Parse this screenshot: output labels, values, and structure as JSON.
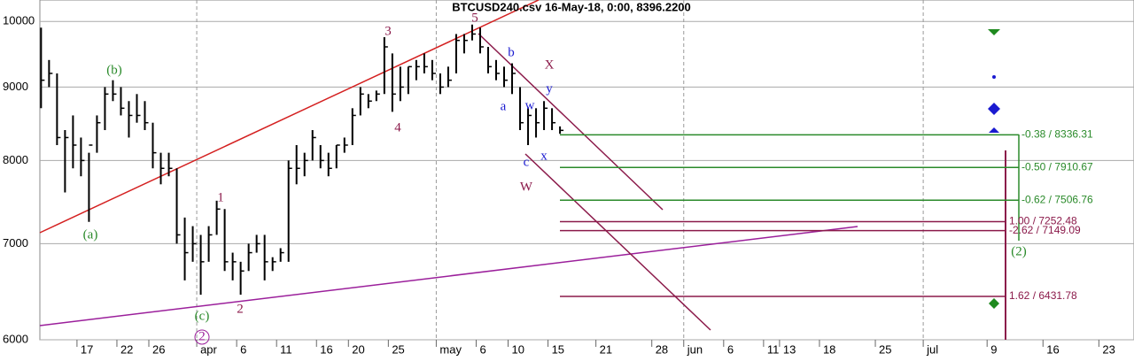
{
  "chart_data": {
    "type": "ohlc",
    "title": "BTCUSD240.csv  16-May-18, 0:00, 8396.2200",
    "color": "#000000",
    "log_scale": true,
    "grid": true,
    "x": [
      71.5,
      72.5,
      73.5,
      74.5,
      75.5,
      76.5,
      77.5,
      78.5,
      79.5,
      80.5,
      81.5,
      82.5,
      83.5,
      84.5,
      85.5,
      86.5,
      87.5,
      88.5,
      89.5,
      90.5,
      91.5,
      92.5,
      93.5,
      94.5,
      95.5,
      96.5,
      97.5,
      98.5,
      99.5,
      100.5,
      101.5,
      102.5,
      103.5,
      104.5,
      105.5,
      106.5,
      107.5,
      108.5,
      109.5,
      110.5,
      111.5,
      112.5,
      113.5,
      114.5,
      115.5,
      116.5,
      117.5,
      118.5,
      119.5,
      120.5,
      121.5,
      122.5,
      123.5,
      124.5,
      125.5,
      126.5,
      127.5,
      128.5,
      129.5,
      130.5,
      131.5,
      132.5,
      133.5,
      134.5,
      135.5,
      136.5
    ],
    "high": [
      9900,
      9400,
      9200,
      8400,
      8600,
      8300,
      8100,
      8600,
      9000,
      9100,
      9000,
      8800,
      8900,
      8800,
      8500,
      8100,
      8100,
      7900,
      7300,
      7200,
      7100,
      7200,
      7500,
      7400,
      6900,
      6800,
      7000,
      7100,
      7100,
      6850,
      6950,
      8000,
      8200,
      8100,
      8400,
      8200,
      8100,
      8200,
      8300,
      8700,
      9000,
      8900,
      8950,
      9750,
      9500,
      9300,
      9300,
      9400,
      9500,
      9400,
      9200,
      9300,
      9800,
      9800,
      9950,
      9900,
      9600,
      9400,
      9300,
      9350,
      9000,
      8700,
      8700,
      8800,
      8700,
      8450
    ],
    "low": [
      8700,
      9000,
      8200,
      7600,
      7900,
      7800,
      7250,
      8100,
      8400,
      8800,
      8600,
      8300,
      8500,
      8400,
      7900,
      7700,
      7800,
      7000,
      6600,
      6800,
      6450,
      6800,
      7100,
      6700,
      6600,
      6450,
      6700,
      6900,
      6600,
      6700,
      6800,
      6800,
      7700,
      7800,
      8000,
      7900,
      7800,
      7900,
      8100,
      8200,
      8600,
      8700,
      8800,
      8900,
      8650,
      8800,
      8900,
      9100,
      9200,
      9100,
      8900,
      9000,
      9200,
      9500,
      9700,
      9500,
      9200,
      9100,
      9000,
      8900,
      8400,
      8200,
      8300,
      8400,
      8400,
      8350
    ],
    "close": [
      9100,
      9200,
      8300,
      8300,
      8200,
      8000,
      8200,
      8500,
      8900,
      8900,
      8700,
      8600,
      8600,
      8500,
      8100,
      7900,
      7900,
      7100,
      6900,
      7000,
      6800,
      7100,
      7400,
      6800,
      6800,
      6700,
      6900,
      7000,
      6800,
      6800,
      6900,
      7900,
      7900,
      8000,
      8300,
      8000,
      7900,
      8200,
      8200,
      8600,
      8900,
      8800,
      8900,
      9600,
      8900,
      9000,
      9300,
      9300,
      9300,
      9200,
      9000,
      9100,
      9700,
      9700,
      9800,
      9600,
      9300,
      9200,
      9100,
      9200,
      8500,
      8600,
      8500,
      8700,
      8500,
      8396.22
    ],
    "xlim": [
      71.35,
      208.4
    ],
    "xticks": [
      {
        "value": 76,
        "label": "17"
      },
      {
        "value": 81,
        "label": "22"
      },
      {
        "value": 85,
        "label": "26"
      },
      {
        "value": 91,
        "label": "apr"
      },
      {
        "value": 96,
        "label": "6"
      },
      {
        "value": 101,
        "label": "11"
      },
      {
        "value": 106,
        "label": "16"
      },
      {
        "value": 110,
        "label": "20"
      },
      {
        "value": 115,
        "label": "25"
      },
      {
        "value": 121,
        "label": "may"
      },
      {
        "value": 126,
        "label": "6"
      },
      {
        "value": 130,
        "label": "10"
      },
      {
        "value": 135,
        "label": "15"
      },
      {
        "value": 141,
        "label": "21"
      },
      {
        "value": 148,
        "label": "28"
      },
      {
        "value": 152,
        "label": "jun"
      },
      {
        "value": 157,
        "label": "6"
      },
      {
        "value": 162,
        "label": "11"
      },
      {
        "value": 164,
        "label": "13"
      },
      {
        "value": 169,
        "label": "18"
      },
      {
        "value": 176,
        "label": "25"
      },
      {
        "value": 182,
        "label": "jul"
      },
      {
        "value": 190,
        "label": "9"
      },
      {
        "value": 197,
        "label": "16"
      },
      {
        "value": 204,
        "label": "23"
      }
    ],
    "ylim": [
      6000,
      10350
    ],
    "yticks": [
      6000,
      7000,
      8000,
      9000,
      10000
    ],
    "levels": [
      {
        "value": 8336.31,
        "label": "-0.38 / 8336.31",
        "color": "#2a8a2a"
      },
      {
        "value": 7910.67,
        "label": "-0.50 / 7910.67",
        "color": "#2a8a2a"
      },
      {
        "value": 7506.76,
        "label": "-0.62 / 7506.76",
        "color": "#2a8a2a"
      },
      {
        "value": 7252.48,
        "label": "1.00 / 7252.48",
        "color": "#8b1a4a"
      },
      {
        "value": 7149.09,
        "label": "-2.62 / 7149.09",
        "color": "#8b1a4a"
      },
      {
        "value": 6431.78,
        "label": "1.62 / 6431.78",
        "color": "#8b1a4a"
      }
    ],
    "annotations": [
      {
        "text": "(a)",
        "color": "#2a8a2a"
      },
      {
        "text": "(b)",
        "color": "#2a8a2a"
      },
      {
        "text": "(c)",
        "color": "#2a8a2a"
      },
      {
        "text": "2",
        "color": "#9b1f9b"
      },
      {
        "text": "1",
        "color": "#8b1a4a"
      },
      {
        "text": "2",
        "color": "#8b1a4a"
      },
      {
        "text": "3",
        "color": "#8b1a4a"
      },
      {
        "text": "4",
        "color": "#8b1a4a"
      },
      {
        "text": "5",
        "color": "#8b1a4a"
      },
      {
        "text": "b",
        "color": "#1a1ad0"
      },
      {
        "text": "a",
        "color": "#1a1ad0"
      },
      {
        "text": "w",
        "color": "#1a1ad0"
      },
      {
        "text": "y",
        "color": "#1a1ad0"
      },
      {
        "text": "c",
        "color": "#1a1ad0"
      },
      {
        "text": "x",
        "color": "#1a1ad0"
      },
      {
        "text": "X",
        "color": "#8b1a4a"
      },
      {
        "text": "W",
        "color": "#8b1a4a"
      },
      {
        "text": "(2)",
        "color": "#2a8a2a"
      }
    ]
  }
}
